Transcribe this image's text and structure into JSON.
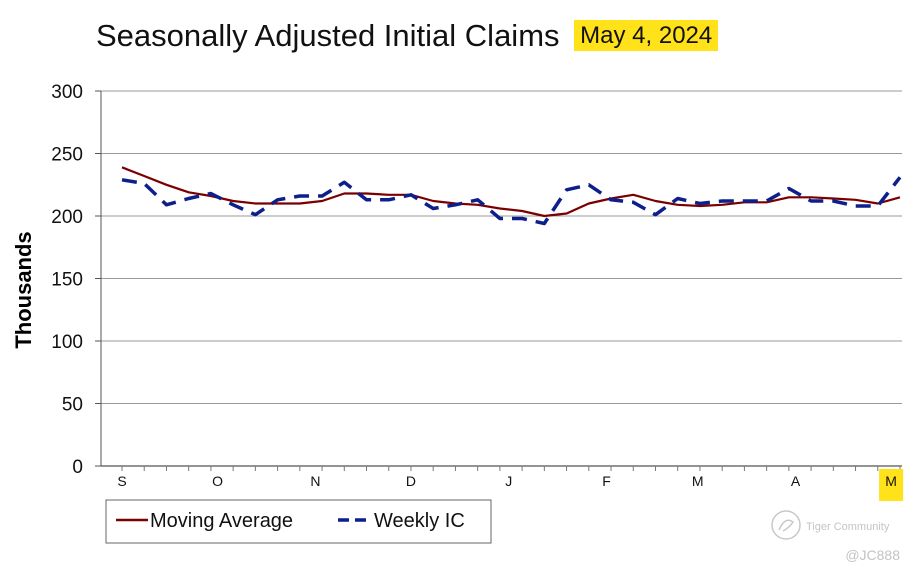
{
  "chart_data": {
    "type": "line",
    "title": "Seasonally Adjusted Initial Claims",
    "title_highlight": "May 4, 2024",
    "ylabel": "Thousands",
    "xlabel": "",
    "ylim": [
      0,
      300
    ],
    "yticks": [
      0,
      50,
      100,
      150,
      200,
      250,
      300
    ],
    "grid": true,
    "legend_placement": "bottom-left",
    "x_month_labels": [
      {
        "label": "S",
        "week": 0
      },
      {
        "label": "O",
        "week": 4.3
      },
      {
        "label": "N",
        "week": 8.7
      },
      {
        "label": "D",
        "week": 13
      },
      {
        "label": "J",
        "week": 17.4
      },
      {
        "label": "F",
        "week": 21.8
      },
      {
        "label": "M",
        "week": 25.9
      },
      {
        "label": "A",
        "week": 30.3
      },
      {
        "label": "M",
        "week": 34.6,
        "highlight": true
      }
    ],
    "series": [
      {
        "name": "Moving Average",
        "color": "#7a0000",
        "dash": "solid",
        "values": [
          239,
          232,
          225,
          219,
          216,
          212,
          210,
          210,
          210,
          212,
          218,
          218,
          217,
          217,
          212,
          210,
          209,
          206,
          204,
          200,
          202,
          210,
          214,
          217,
          212,
          209,
          208,
          209,
          211,
          211,
          215,
          215,
          214,
          213,
          210,
          215
        ]
      },
      {
        "name": "Weekly IC",
        "color": "#0d1f8a",
        "dash": "dashed",
        "values": [
          229,
          226,
          209,
          214,
          218,
          209,
          201,
          213,
          216,
          216,
          227,
          213,
          213,
          217,
          206,
          209,
          213,
          198,
          198,
          194,
          221,
          225,
          213,
          211,
          201,
          214,
          210,
          212,
          212,
          212,
          222,
          212,
          212,
          208,
          208,
          231
        ]
      }
    ]
  },
  "colors": {
    "highlight": "#ffe21a",
    "grid": "#9a9a9a"
  },
  "watermark": {
    "brand": "Tiger Community",
    "handle": "@JC888"
  }
}
